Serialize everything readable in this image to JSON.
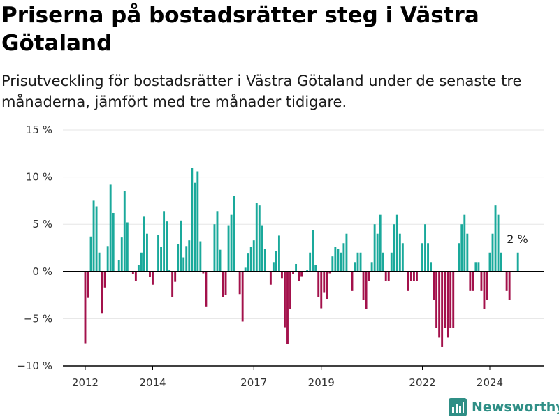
{
  "title": "Priserna på bostadsrätter steg i Västra Götaland",
  "subtitle": "Prisutveckling för bostadsrätter i Västra Götaland under de senaste tre månaderna, jämfört med tre månader tidigare.",
  "brand": {
    "name": "Newsworthy",
    "logo_icon": "bar-chart-logo-icon"
  },
  "chart_data": {
    "type": "bar",
    "title": "Priserna på bostadsrätter steg i Västra Götaland",
    "subtitle": "Prisutveckling för bostadsrätter i Västra Götaland under de senaste tre månaderna, jämfört med tre månader tidigare.",
    "xlabel": "",
    "ylabel": "",
    "ylim": [
      -10,
      15
    ],
    "y_ticks": [
      -10,
      -5,
      0,
      5,
      10,
      15
    ],
    "y_tick_labels": [
      "−10 %",
      "−5 %",
      "0 %",
      "5 %",
      "10 %",
      "15 %"
    ],
    "x_ticks": [
      "2012-01",
      "2014-01",
      "2017-01",
      "2019-01",
      "2022-01",
      "2024-01"
    ],
    "x_tick_labels": [
      "2012",
      "2014",
      "2017",
      "2019",
      "2022",
      "2024"
    ],
    "grid": true,
    "colors": {
      "positive": "#1aa99b",
      "negative": "#a3114b",
      "axis": "#000000",
      "grid": "#e5e5e5",
      "tick_text": "#333333"
    },
    "annotation": "2 %",
    "series": [
      {
        "x": [
          "2012-01",
          "2012-02",
          "2012-03",
          "2012-04",
          "2012-05",
          "2012-06",
          "2012-07",
          "2012-08",
          "2012-09",
          "2012-10",
          "2012-11",
          "2012-12",
          "2013-01",
          "2013-02",
          "2013-03",
          "2013-04",
          "2013-05",
          "2013-06",
          "2013-07",
          "2013-08",
          "2013-09",
          "2013-10",
          "2013-11",
          "2013-12",
          "2014-01",
          "2014-02",
          "2014-03",
          "2014-04",
          "2014-05",
          "2014-06",
          "2014-07",
          "2014-08",
          "2014-09",
          "2014-10",
          "2014-11",
          "2014-12",
          "2015-01",
          "2015-02",
          "2015-03",
          "2015-04",
          "2015-05",
          "2015-06",
          "2015-07",
          "2015-08",
          "2015-09",
          "2015-10",
          "2015-11",
          "2015-12",
          "2016-01",
          "2016-02",
          "2016-03",
          "2016-04",
          "2016-05",
          "2016-06",
          "2016-07",
          "2016-08",
          "2016-09",
          "2016-10",
          "2016-11",
          "2016-12",
          "2017-01",
          "2017-02",
          "2017-03",
          "2017-04",
          "2017-05",
          "2017-06",
          "2017-07",
          "2017-08",
          "2017-09",
          "2017-10",
          "2017-11",
          "2017-12",
          "2018-01",
          "2018-02",
          "2018-03",
          "2018-04",
          "2018-05",
          "2018-06",
          "2018-07",
          "2018-08",
          "2018-09",
          "2018-10",
          "2018-11",
          "2018-12",
          "2019-01",
          "2019-02",
          "2019-03",
          "2019-04",
          "2019-05",
          "2019-06",
          "2019-07",
          "2019-08",
          "2019-09",
          "2019-10",
          "2019-11",
          "2019-12",
          "2020-01",
          "2020-02",
          "2020-03",
          "2020-04",
          "2020-05",
          "2020-06",
          "2020-07",
          "2020-08",
          "2020-09",
          "2020-10",
          "2020-11",
          "2020-12",
          "2021-01",
          "2021-02",
          "2021-03",
          "2021-04",
          "2021-05",
          "2021-06",
          "2021-07",
          "2021-08",
          "2021-09",
          "2021-10",
          "2021-11",
          "2021-12",
          "2022-01",
          "2022-02",
          "2022-03",
          "2022-04",
          "2022-05",
          "2022-06",
          "2022-07",
          "2022-08",
          "2022-09",
          "2022-10",
          "2022-11",
          "2022-12",
          "2023-01",
          "2023-02",
          "2023-03",
          "2023-04",
          "2023-05",
          "2023-06",
          "2023-07",
          "2023-08",
          "2023-09",
          "2023-10",
          "2023-11",
          "2023-12",
          "2024-01",
          "2024-02",
          "2024-03",
          "2024-04",
          "2024-05",
          "2024-06",
          "2024-07",
          "2024-08",
          "2024-09",
          "2024-10",
          "2024-11",
          "2024-12"
        ],
        "values": [
          -7.6,
          -2.8,
          3.7,
          7.5,
          6.9,
          2.0,
          -4.4,
          -1.7,
          2.7,
          9.2,
          6.2,
          0.0,
          1.2,
          3.6,
          8.5,
          5.2,
          0.0,
          -0.3,
          -1.0,
          0.7,
          2.0,
          5.8,
          4.0,
          -0.6,
          -1.4,
          0.0,
          3.9,
          2.6,
          6.4,
          5.3,
          0.2,
          -2.7,
          -1.1,
          2.9,
          5.4,
          1.5,
          2.7,
          3.3,
          11.0,
          9.4,
          10.6,
          3.2,
          -0.2,
          -3.7,
          0.0,
          0.0,
          5.0,
          6.4,
          2.3,
          -2.7,
          -2.5,
          4.9,
          6.0,
          8.0,
          0.0,
          -2.4,
          -5.3,
          0.4,
          1.9,
          2.6,
          3.3,
          7.3,
          7.0,
          4.9,
          2.4,
          0.0,
          -1.4,
          1.0,
          2.2,
          3.8,
          -0.7,
          -5.9,
          -7.7,
          -4.0,
          -0.3,
          0.8,
          -1.0,
          -0.5,
          0.0,
          0.2,
          2.0,
          4.4,
          0.7,
          -2.7,
          -3.9,
          -2.2,
          -2.9,
          -0.2,
          1.6,
          2.6,
          2.4,
          2.0,
          3.0,
          4.0,
          0.0,
          -2.0,
          1.0,
          2.0,
          2.0,
          -3.0,
          -4.0,
          -1.0,
          1.0,
          5.0,
          4.0,
          6.0,
          2.0,
          -1.0,
          -1.0,
          2.0,
          5.0,
          6.0,
          4.0,
          3.0,
          0.0,
          -2.0,
          -1.0,
          -1.0,
          -1.0,
          0.0,
          3.0,
          5.0,
          3.0,
          1.0,
          -3.0,
          -6.0,
          -7.0,
          -8.0,
          -6.0,
          -7.0,
          -6.0,
          -6.0,
          0.0,
          3.0,
          5.0,
          6.0,
          4.0,
          -2.0,
          -2.0,
          1.0,
          1.0,
          -2.0,
          -4.0,
          -3.0,
          2.0,
          4.0,
          7.0,
          6.0,
          2.0,
          0.0,
          -2.0,
          -3.0,
          0.0,
          0.0,
          2.0,
          0.0
        ]
      }
    ]
  }
}
